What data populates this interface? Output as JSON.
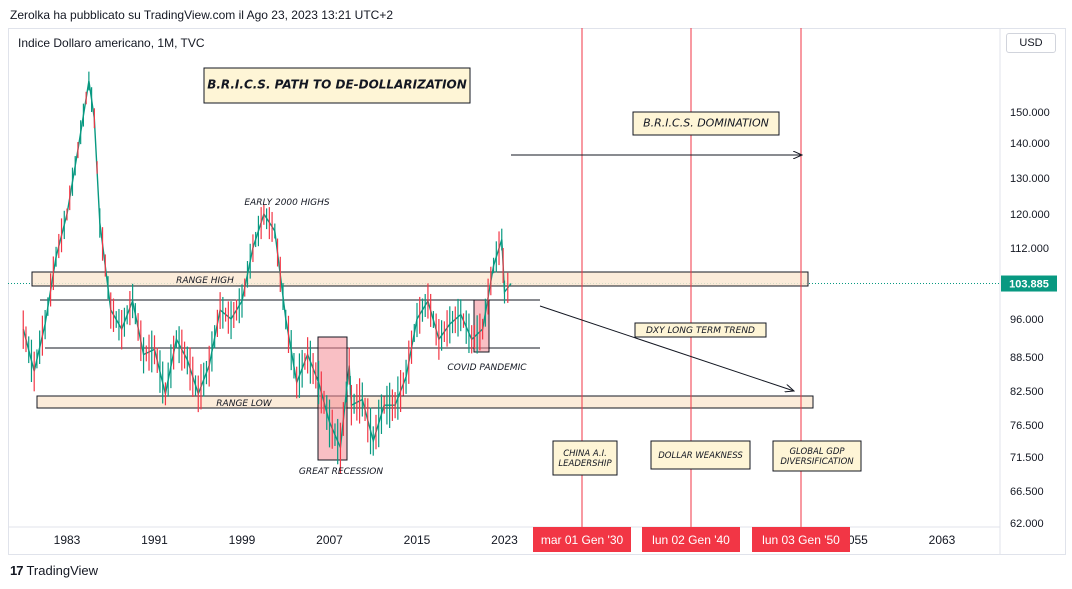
{
  "header": {
    "publisher": "Zerolka ha pubblicato su TradingView.com il Ago 23, 2023 13:21 UTC+2",
    "symbol": "Indice Dollaro americano, 1M, TVC",
    "currency_button": "USD",
    "brand": "TradingView"
  },
  "chart_data": {
    "type": "line",
    "title": "B.R.I.C.S. PATH TO DE-DOLLARIZATION",
    "y_ticks": [
      "150.000",
      "140.000",
      "130.000",
      "120.000",
      "112.000",
      "104.000",
      "96.000",
      "88.500",
      "82.500",
      "76.500",
      "71.500",
      "66.500",
      "62.000"
    ],
    "x_ticks": [
      "1983",
      "1991",
      "1999",
      "2007",
      "2015",
      "2023",
      "2055",
      "2063"
    ],
    "x_date_labels": [
      "mar 01 Gen '30",
      "lun 02 Gen '40",
      "lun 03 Gen '50"
    ],
    "last_price": "103.885",
    "last_price_color": "#089981",
    "date_label_color": "#f23645",
    "series": [
      {
        "values": [
          [
            1979,
            94
          ],
          [
            1980,
            86
          ],
          [
            1981,
            95
          ],
          [
            1982,
            110
          ],
          [
            1983,
            120
          ],
          [
            1984,
            138
          ],
          [
            1985,
            160
          ],
          [
            1985.5,
            148
          ],
          [
            1986,
            118
          ],
          [
            1987,
            98
          ],
          [
            1988,
            94
          ],
          [
            1989,
            100
          ],
          [
            1990,
            89
          ],
          [
            1991,
            90
          ],
          [
            1992,
            82
          ],
          [
            1993,
            92
          ],
          [
            1994,
            88
          ],
          [
            1995,
            82
          ],
          [
            1996,
            87
          ],
          [
            1997,
            98
          ],
          [
            1998,
            96
          ],
          [
            1999,
            100
          ],
          [
            2000,
            112
          ],
          [
            2001,
            120
          ],
          [
            2002,
            116
          ],
          [
            2003,
            96
          ],
          [
            2004,
            84
          ],
          [
            2005,
            89
          ],
          [
            2006,
            84
          ],
          [
            2007,
            77
          ],
          [
            2008,
            73
          ],
          [
            2008.8,
            87
          ],
          [
            2009,
            80
          ],
          [
            2010,
            81
          ],
          [
            2011,
            74
          ],
          [
            2012,
            80
          ],
          [
            2013,
            80
          ],
          [
            2014,
            85
          ],
          [
            2015,
            96
          ],
          [
            2016,
            100
          ],
          [
            2017,
            92
          ],
          [
            2018,
            95
          ],
          [
            2019,
            97
          ],
          [
            2020,
            92
          ],
          [
            2021,
            94
          ],
          [
            2022,
            108
          ],
          [
            2022.75,
            114
          ],
          [
            2023,
            102
          ],
          [
            2023.6,
            103.885
          ]
        ]
      }
    ],
    "annotations": [
      {
        "text": "B.R.I.C.S. PATH TO DE-DOLLARIZATION"
      },
      {
        "text": "B.R.I.C.S. DOMINATION"
      },
      {
        "text": "EARLY 2000 HIGHS"
      },
      {
        "text": "RANGE HIGH"
      },
      {
        "text": "RANGE LOW"
      },
      {
        "text": "DXY LONG TERM TREND"
      },
      {
        "text": "COVID PANDEMIC"
      },
      {
        "text": "GREAT RECESSION"
      },
      {
        "text": "CHINA A.I. LEADERSHIP",
        "lines": [
          "CHINA A.I.",
          "LEADERSHIP"
        ]
      },
      {
        "text": "DOLLAR WEAKNESS"
      },
      {
        "text": "GLOBAL GDP DIVERSIFICATION",
        "lines": [
          "GLOBAL GDP",
          "DIVERSIFICATION"
        ]
      }
    ]
  }
}
